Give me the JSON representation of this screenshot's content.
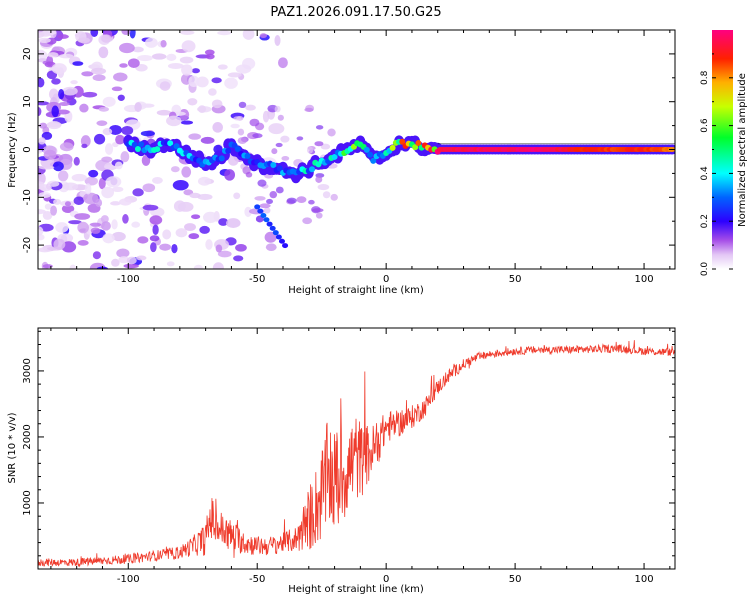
{
  "figure_title": "PAZ1.2026.091.17.50.G25",
  "chart_data": [
    {
      "type": "heatmap",
      "title": "PAZ1.2026.091.17.50.G25",
      "xlabel": "Height of straight line (km)",
      "ylabel": "Frequency (Hz)",
      "xlim": [
        -135,
        112
      ],
      "ylim": [
        -25,
        25
      ],
      "xticks": [
        -100,
        -50,
        0,
        50,
        100
      ],
      "yticks": [
        -20,
        -10,
        0,
        10,
        20
      ],
      "grid": false,
      "colorbar": {
        "label": "Normalized spectral amplitude",
        "range": [
          0,
          1
        ],
        "ticks": [
          0.0,
          0.2,
          0.4,
          0.6,
          0.8
        ]
      },
      "ridge": [
        {
          "x": -100,
          "freq": 1.0,
          "amp": 0.35
        },
        {
          "x": -95,
          "freq": 0.5,
          "amp": 0.4
        },
        {
          "x": -90,
          "freq": 0.0,
          "amp": 0.4
        },
        {
          "x": -85,
          "freq": 1.5,
          "amp": 0.35
        },
        {
          "x": -80,
          "freq": 0.0,
          "amp": 0.35
        },
        {
          "x": -75,
          "freq": -1.5,
          "amp": 0.35
        },
        {
          "x": -70,
          "freq": -3.0,
          "amp": 0.3
        },
        {
          "x": -65,
          "freq": -2.0,
          "amp": 0.3
        },
        {
          "x": -60,
          "freq": 1.0,
          "amp": 0.3
        },
        {
          "x": -55,
          "freq": -1.0,
          "amp": 0.3
        },
        {
          "x": -50,
          "freq": -3.0,
          "amp": 0.3
        },
        {
          "x": -45,
          "freq": -3.5,
          "amp": 0.3
        },
        {
          "x": -40,
          "freq": -4.5,
          "amp": 0.35
        },
        {
          "x": -35,
          "freq": -5.0,
          "amp": 0.4
        },
        {
          "x": -30,
          "freq": -4.0,
          "amp": 0.4
        },
        {
          "x": -25,
          "freq": -2.5,
          "amp": 0.4
        },
        {
          "x": -20,
          "freq": -1.5,
          "amp": 0.4
        },
        {
          "x": -15,
          "freq": 0.0,
          "amp": 0.6
        },
        {
          "x": -10,
          "freq": 1.0,
          "amp": 0.5
        },
        {
          "x": -5,
          "freq": -2.0,
          "amp": 0.4
        },
        {
          "x": 0,
          "freq": -1.0,
          "amp": 0.45
        },
        {
          "x": 5,
          "freq": 1.5,
          "amp": 0.7
        },
        {
          "x": 10,
          "freq": 1.0,
          "amp": 0.8
        },
        {
          "x": 15,
          "freq": 0.5,
          "amp": 0.75
        },
        {
          "x": 20,
          "freq": 0.0,
          "amp": 0.95
        },
        {
          "x": 40,
          "freq": 0.0,
          "amp": 1.0
        },
        {
          "x": 60,
          "freq": 0.0,
          "amp": 1.0
        },
        {
          "x": 80,
          "freq": 0.0,
          "amp": 0.9
        },
        {
          "x": 100,
          "freq": 0.0,
          "amp": 0.9
        },
        {
          "x": 112,
          "freq": 0.0,
          "amp": 0.85
        }
      ],
      "noise_region_x": [
        -135,
        -60
      ]
    },
    {
      "type": "line",
      "title": "",
      "xlabel": "Height of straight line (km)",
      "ylabel": "SNR (10 * v/v)",
      "xlim": [
        -135,
        112
      ],
      "ylim": [
        0,
        3650
      ],
      "xticks": [
        -100,
        -50,
        0,
        50,
        100
      ],
      "yticks": [
        1000,
        2000,
        3000
      ],
      "grid": false,
      "series": [
        {
          "name": "SNR",
          "color": "#ef3b2c",
          "x": [
            -135,
            -120,
            -100,
            -90,
            -80,
            -75,
            -70,
            -68,
            -66,
            -60,
            -55,
            -50,
            -45,
            -40,
            -35,
            -30,
            -25,
            -22,
            -20,
            -18,
            -15,
            -12,
            -10,
            -8,
            -5,
            -2,
            0,
            5,
            10,
            15,
            20,
            25,
            30,
            35,
            40,
            50,
            60,
            70,
            80,
            90,
            100,
            112
          ],
          "y": [
            100,
            100,
            150,
            200,
            250,
            350,
            450,
            800,
            650,
            500,
            400,
            350,
            350,
            400,
            450,
            750,
            1100,
            1500,
            1300,
            1400,
            1500,
            1700,
            1650,
            1700,
            1800,
            2000,
            2150,
            2200,
            2300,
            2450,
            2750,
            2950,
            3100,
            3200,
            3250,
            3300,
            3320,
            3320,
            3330,
            3340,
            3300,
            3280
          ],
          "noise": [
            60,
            60,
            70,
            80,
            100,
            150,
            250,
            350,
            300,
            250,
            180,
            150,
            150,
            150,
            200,
            500,
            700,
            900,
            800,
            800,
            700,
            700,
            600,
            500,
            400,
            300,
            250,
            200,
            180,
            150,
            120,
            100,
            80,
            70,
            60,
            60,
            60,
            60,
            60,
            60,
            60,
            60
          ]
        }
      ]
    }
  ]
}
